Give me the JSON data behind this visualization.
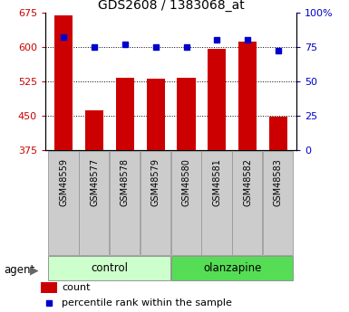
{
  "title": "GDS2608 / 1383068_at",
  "samples": [
    "GSM48559",
    "GSM48577",
    "GSM48578",
    "GSM48579",
    "GSM48580",
    "GSM48581",
    "GSM48582",
    "GSM48583"
  ],
  "counts": [
    668,
    462,
    533,
    531,
    533,
    595,
    612,
    447
  ],
  "percentiles": [
    82,
    75,
    77,
    75,
    75,
    80,
    80,
    72
  ],
  "n_control": 4,
  "n_olanzapine": 4,
  "ylim_left": [
    375,
    675
  ],
  "ylim_right": [
    0,
    100
  ],
  "yticks_left": [
    375,
    450,
    525,
    600,
    675
  ],
  "yticks_right": [
    0,
    25,
    50,
    75,
    100
  ],
  "ytick_labels_right": [
    "0",
    "25",
    "50",
    "75",
    "100%"
  ],
  "grid_lines": [
    450,
    525,
    600
  ],
  "bar_color": "#cc0000",
  "dot_color": "#0000cc",
  "control_color": "#ccffcc",
  "olanzapine_color": "#55dd55",
  "xlabel_color": "#000000",
  "title_color": "#000000",
  "left_tick_color": "#cc0000",
  "right_tick_color": "#0000cc",
  "agent_label": "agent",
  "group_labels": [
    "control",
    "olanzapine"
  ],
  "legend_count_label": "count",
  "legend_pct_label": "percentile rank within the sample",
  "bar_width": 0.6,
  "tick_label_bg": "#cccccc",
  "tick_label_edge": "#999999"
}
